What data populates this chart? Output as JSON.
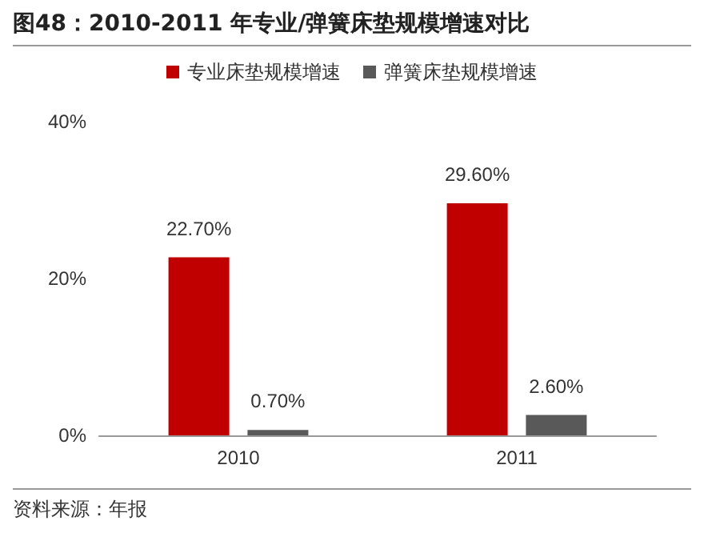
{
  "chart_data": {
    "type": "bar",
    "title": "图48：2010-2011 年专业/弹簧床垫规模增速对比",
    "categories": [
      "2010",
      "2011"
    ],
    "series": [
      {
        "name": "专业床垫规模增速",
        "color": "#c00000",
        "values": [
          22.7,
          29.6
        ],
        "value_labels": [
          "22.70%",
          "29.60%"
        ]
      },
      {
        "name": "弹簧床垫规模增速",
        "color": "#595959",
        "values": [
          0.7,
          2.6
        ],
        "value_labels": [
          "0.70%",
          "2.60%"
        ]
      }
    ],
    "ylim": [
      0,
      40
    ],
    "yticks": [
      {
        "value": 0,
        "label": "0%"
      },
      {
        "value": 20,
        "label": "20%"
      },
      {
        "value": 40,
        "label": "40%"
      }
    ],
    "grid": false,
    "legend": "top",
    "annotations": [
      "资料来源：年报"
    ]
  }
}
